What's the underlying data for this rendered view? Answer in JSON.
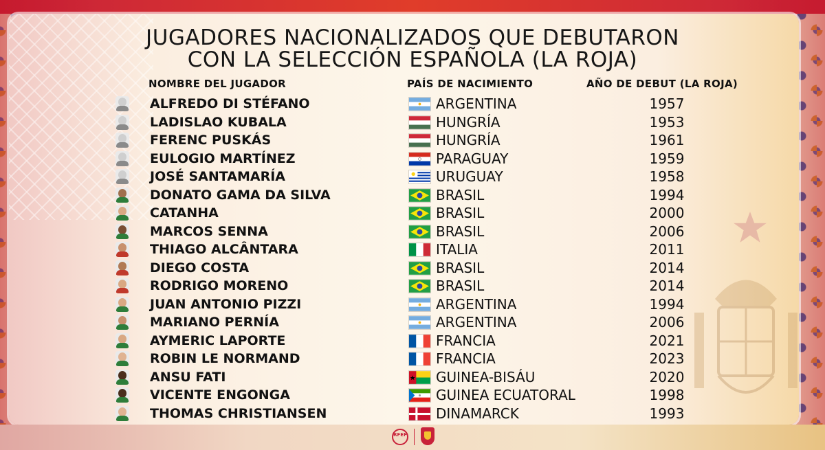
{
  "title_line1": "JUGADORES NACIONALIZADOS QUE DEBUTARON",
  "title_line2": "CON LA SELECCIÓN ESPAÑOLA (LA ROJA)",
  "headers": {
    "name": "NOMBRE DEL JUGADOR",
    "country": "PAÍS DE NACIMIENTO",
    "year": "AÑO DE DEBUT (LA ROJA)"
  },
  "players": [
    {
      "name": "ALFREDO DI STÉFANO",
      "country": "ARGENTINA",
      "year": "1957",
      "flag": "argentina"
    },
    {
      "name": "LADISLAO KUBALA",
      "country": "HUNGRÍA",
      "year": "1953",
      "flag": "hungary"
    },
    {
      "name": "FERENC PUSKÁS",
      "country": "HUNGRÍA",
      "year": "1961",
      "flag": "hungary"
    },
    {
      "name": "EULOGIO MARTÍNEZ",
      "country": "PARAGUAY",
      "year": "1959",
      "flag": "paraguay"
    },
    {
      "name": "JOSÉ SANTAMARÍA",
      "country": "URUGUAY",
      "year": "1958",
      "flag": "uruguay"
    },
    {
      "name": "DONATO GAMA DA SILVA",
      "country": "BRASIL",
      "year": "1994",
      "flag": "brazil"
    },
    {
      "name": "CATANHA",
      "country": "BRASIL",
      "year": "2000",
      "flag": "brazil"
    },
    {
      "name": "MARCOS SENNA",
      "country": "BRASIL",
      "year": "2006",
      "flag": "brazil"
    },
    {
      "name": "THIAGO ALCÂNTARA",
      "country": "ITALIA",
      "year": "2011",
      "flag": "italy"
    },
    {
      "name": "DIEGO COSTA",
      "country": "BRASIL",
      "year": "2014",
      "flag": "brazil"
    },
    {
      "name": "RODRIGO MORENO",
      "country": "BRASIL",
      "year": "2014",
      "flag": "brazil"
    },
    {
      "name": "JUAN ANTONIO PIZZI",
      "country": "ARGENTINA",
      "year": "1994",
      "flag": "argentina"
    },
    {
      "name": "MARIANO PERNÍA",
      "country": "ARGENTINA",
      "year": "2006",
      "flag": "argentina"
    },
    {
      "name": "AYMERIC LAPORTE",
      "country": "FRANCIA",
      "year": "2021",
      "flag": "france"
    },
    {
      "name": "ROBIN LE NORMAND",
      "country": "FRANCIA",
      "year": "2023",
      "flag": "france"
    },
    {
      "name": "ANSU FATI",
      "country": "GUINEA-BISÁU",
      "year": "2020",
      "flag": "guinea-bissau"
    },
    {
      "name": "VICENTE ENGONGA",
      "country": "GUINEA ECUATORAL",
      "year": "1998",
      "flag": "equatorial-guinea"
    },
    {
      "name": "THOMAS CHRISTIANSEN",
      "country": "DINAMARCK",
      "year": "1993",
      "flag": "denmark"
    }
  ],
  "footer_logo_text": "RFEF"
}
